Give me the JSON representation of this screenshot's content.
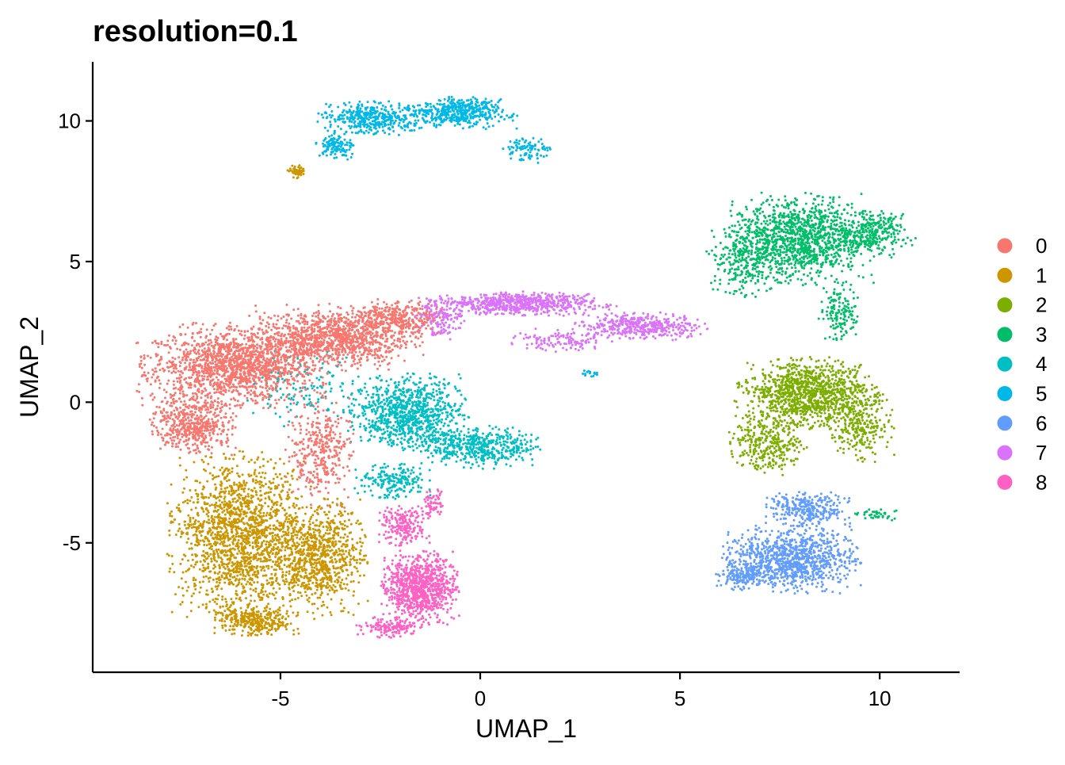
{
  "chart_data": {
    "type": "scatter",
    "title": "resolution=0.1",
    "xlabel": "UMAP_1",
    "ylabel": "UMAP_2",
    "xlim": [
      -9.7,
      12.0
    ],
    "ylim": [
      -9.6,
      12.1
    ],
    "x_ticks": [
      -5,
      0,
      5,
      10
    ],
    "y_ticks": [
      -5,
      0,
      5,
      10
    ],
    "grid": false,
    "legend_position": "right",
    "series": [
      {
        "name": "0",
        "color": "#F8766D",
        "regions": [
          {
            "cx": -6.2,
            "cy": 1.3,
            "rx": 2.2,
            "ry": 1.4,
            "n": 1600
          },
          {
            "cx": -3.6,
            "cy": 2.3,
            "rx": 2.0,
            "ry": 1.1,
            "n": 1100
          },
          {
            "cx": -7.2,
            "cy": -0.8,
            "rx": 1.0,
            "ry": 1.0,
            "n": 500
          },
          {
            "cx": -4.0,
            "cy": -1.8,
            "rx": 0.8,
            "ry": 1.8,
            "n": 350
          },
          {
            "cx": -2.0,
            "cy": 3.0,
            "rx": 1.0,
            "ry": 0.6,
            "n": 300
          }
        ]
      },
      {
        "name": "1",
        "color": "#CD9600",
        "regions": [
          {
            "cx": -6.0,
            "cy": -4.8,
            "rx": 1.7,
            "ry": 2.8,
            "n": 1700
          },
          {
            "cx": -4.0,
            "cy": -5.5,
            "rx": 1.1,
            "ry": 1.9,
            "n": 800
          },
          {
            "cx": -5.6,
            "cy": -7.8,
            "rx": 1.0,
            "ry": 0.5,
            "n": 300
          },
          {
            "cx": -4.6,
            "cy": 8.2,
            "rx": 0.22,
            "ry": 0.22,
            "n": 60
          }
        ]
      },
      {
        "name": "2",
        "color": "#7CAE00",
        "regions": [
          {
            "cx": 8.2,
            "cy": 0.3,
            "rx": 1.7,
            "ry": 1.2,
            "n": 1100
          },
          {
            "cx": 7.2,
            "cy": -1.5,
            "rx": 0.9,
            "ry": 1.0,
            "n": 300
          },
          {
            "cx": 9.5,
            "cy": -0.8,
            "rx": 0.8,
            "ry": 1.3,
            "n": 250
          }
        ]
      },
      {
        "name": "3",
        "color": "#00BE67",
        "regions": [
          {
            "cx": 8.0,
            "cy": 5.8,
            "rx": 1.7,
            "ry": 1.5,
            "n": 1200
          },
          {
            "cx": 9.8,
            "cy": 6.0,
            "rx": 1.0,
            "ry": 0.8,
            "n": 300
          },
          {
            "cx": 6.6,
            "cy": 5.0,
            "rx": 0.9,
            "ry": 1.2,
            "n": 250
          },
          {
            "cx": 9.0,
            "cy": 3.2,
            "rx": 0.5,
            "ry": 1.0,
            "n": 150
          },
          {
            "cx": 10.0,
            "cy": -4.0,
            "rx": 0.6,
            "ry": 0.18,
            "n": 40
          }
        ]
      },
      {
        "name": "4",
        "color": "#00BFC4",
        "regions": [
          {
            "cx": -1.8,
            "cy": -0.4,
            "rx": 1.4,
            "ry": 1.3,
            "n": 900
          },
          {
            "cx": 0.0,
            "cy": -1.6,
            "rx": 1.4,
            "ry": 0.7,
            "n": 500
          },
          {
            "cx": -2.2,
            "cy": -2.8,
            "rx": 0.9,
            "ry": 0.6,
            "n": 200
          },
          {
            "cx": -4.5,
            "cy": 0.5,
            "rx": 1.5,
            "ry": 1.3,
            "n": 120
          }
        ]
      },
      {
        "name": "5",
        "color": "#00B8E7",
        "regions": [
          {
            "cx": -0.5,
            "cy": 10.3,
            "rx": 1.3,
            "ry": 0.55,
            "n": 450
          },
          {
            "cx": -2.7,
            "cy": 10.1,
            "rx": 1.3,
            "ry": 0.55,
            "n": 400
          },
          {
            "cx": -3.6,
            "cy": 9.1,
            "rx": 0.5,
            "ry": 0.45,
            "n": 120
          },
          {
            "cx": 1.2,
            "cy": 9.0,
            "rx": 0.6,
            "ry": 0.45,
            "n": 90
          },
          {
            "cx": 2.8,
            "cy": 1.0,
            "rx": 0.22,
            "ry": 0.12,
            "n": 15
          }
        ]
      },
      {
        "name": "6",
        "color": "#619CFF",
        "regions": [
          {
            "cx": 7.8,
            "cy": -5.6,
            "rx": 1.6,
            "ry": 1.1,
            "n": 1000
          },
          {
            "cx": 8.2,
            "cy": -3.8,
            "rx": 1.0,
            "ry": 0.6,
            "n": 300
          },
          {
            "cx": 6.5,
            "cy": -6.2,
            "rx": 0.6,
            "ry": 0.45,
            "n": 150
          }
        ]
      },
      {
        "name": "7",
        "color": "#DB72FB",
        "regions": [
          {
            "cx": 1.0,
            "cy": 3.5,
            "rx": 2.2,
            "ry": 0.4,
            "n": 650
          },
          {
            "cx": 4.0,
            "cy": 2.7,
            "rx": 1.6,
            "ry": 0.45,
            "n": 400
          },
          {
            "cx": -1.0,
            "cy": 3.0,
            "rx": 0.6,
            "ry": 0.7,
            "n": 150
          },
          {
            "cx": 2.0,
            "cy": 2.2,
            "rx": 1.2,
            "ry": 0.4,
            "n": 120
          }
        ]
      },
      {
        "name": "8",
        "color": "#FF61C3",
        "regions": [
          {
            "cx": -1.5,
            "cy": -6.6,
            "rx": 0.9,
            "ry": 1.2,
            "n": 900
          },
          {
            "cx": -1.9,
            "cy": -4.4,
            "rx": 0.6,
            "ry": 0.7,
            "n": 200
          },
          {
            "cx": -2.3,
            "cy": -8.0,
            "rx": 0.8,
            "ry": 0.35,
            "n": 150
          },
          {
            "cx": -1.2,
            "cy": -3.6,
            "rx": 0.3,
            "ry": 0.5,
            "n": 60
          }
        ]
      }
    ]
  }
}
